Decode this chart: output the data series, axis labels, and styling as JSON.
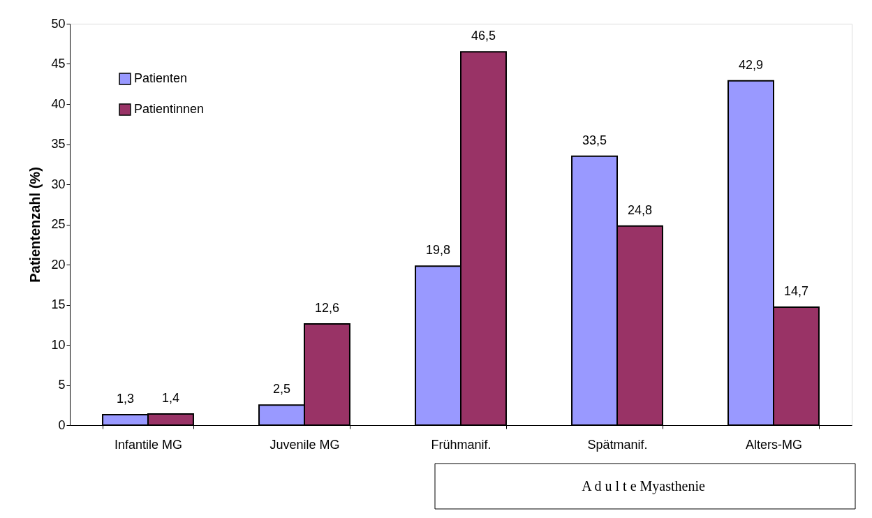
{
  "chart_data": {
    "type": "bar",
    "ylabel": "Patientenzahl (%)",
    "categories": [
      "Infantile MG",
      "Juvenile MG",
      "Frühmanif.",
      "Spätmanif.",
      "Alters-MG"
    ],
    "series": [
      {
        "name": "Patienten",
        "color": "#9999ff",
        "values": [
          1.3,
          2.5,
          19.8,
          33.5,
          42.9
        ],
        "value_labels": [
          "1,3",
          "2,5",
          "19,8",
          "33,5",
          "42,9"
        ]
      },
      {
        "name": "Patientinnen",
        "color": "#993366",
        "values": [
          1.4,
          12.6,
          46.5,
          24.8,
          14.7
        ],
        "value_labels": [
          "1,4",
          "12,6",
          "46,5",
          "24,8",
          "14,7"
        ]
      }
    ],
    "ylim": [
      0,
      50
    ],
    "yticks": [
      0,
      5,
      10,
      15,
      20,
      25,
      30,
      35,
      40,
      45,
      50
    ],
    "grid": false,
    "legend": "top left",
    "annotations": [
      "A d u l t e Myasthenie"
    ]
  }
}
